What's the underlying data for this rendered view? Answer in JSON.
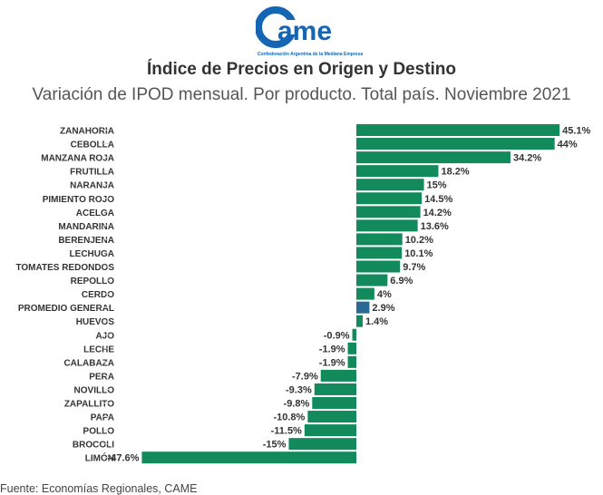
{
  "logo": {
    "text": "came",
    "tagline": "Confederación Argentina de la Mediana Empresa",
    "color": "#1565b5"
  },
  "title": "Índice de Precios en Origen y Destino",
  "subtitle": "Variación de IPOD mensual. Por producto. Total país. Noviembre 2021",
  "source": "Fuente: Economías Regionales, CAME",
  "chart_data": {
    "type": "bar",
    "orientation": "horizontal",
    "categories": [
      "ZANAHORIA",
      "CEBOLLA",
      "MANZANA ROJA",
      "FRUTILLA",
      "NARANJA",
      "PIMIENTO ROJO",
      "ACELGA",
      "MANDARINA",
      "BERENJENA",
      "LECHUGA",
      "TOMATES REDONDOS",
      "REPOLLO",
      "CERDO",
      "PROMEDIO GENERAL",
      "HUEVOS",
      "AJO",
      "LECHE",
      "CALABAZA",
      "PERA",
      "NOVILLO",
      "ZAPALLITO",
      "PAPA",
      "POLLO",
      "BROCOLI",
      "LIMÓN"
    ],
    "values": [
      45.1,
      44,
      34.2,
      18.2,
      15,
      14.5,
      14.2,
      13.6,
      10.2,
      10.1,
      9.7,
      6.9,
      4,
      2.9,
      1.4,
      -0.9,
      -1.9,
      -1.9,
      -7.9,
      -9.3,
      -9.8,
      -10.8,
      -11.5,
      -15,
      -47.6
    ],
    "data_labels": [
      "45.1%",
      "44%",
      "34.2%",
      "18.2%",
      "15%",
      "14.5%",
      "14.2%",
      "13.6%",
      "10.2%",
      "10.1%",
      "9.7%",
      "6.9%",
      "4%",
      "2.9%",
      "1.4%",
      "-0.9%",
      "-1.9%",
      "-1.9%",
      "-7.9%",
      "-9.3%",
      "-9.8%",
      "-10.8%",
      "-11.5%",
      "-15%",
      "-47.6%"
    ],
    "highlight": "PROMEDIO GENERAL",
    "colors": {
      "default": "#138a5c",
      "highlight": "#2a6896"
    },
    "grid": false
  }
}
